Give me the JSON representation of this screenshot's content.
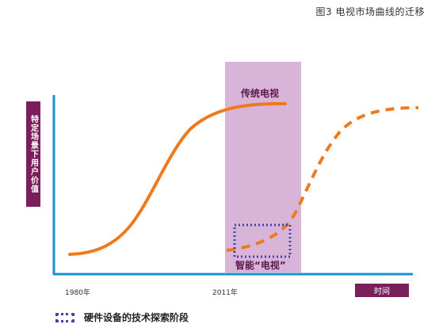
{
  "figure_title": "图3 电视市场曲线的迁移",
  "y_axis_label": "特定场景下用户价值",
  "x_axis_label": "时间",
  "x_ticks": [
    "1980年",
    "2011年"
  ],
  "regions": {
    "traditional_tv": "传统电视",
    "smart_tv": "智能“电视”"
  },
  "legend": {
    "hardware_exploration": "硬件设备的技术探索阶段"
  },
  "colors": {
    "accent_purple": "#7a1f5c",
    "highlight_band": "#d8b4d8",
    "curve_orange": "#ee7a1c",
    "axis_blue": "#1b8fd0",
    "dotted_box": "#4a3fb3"
  }
}
